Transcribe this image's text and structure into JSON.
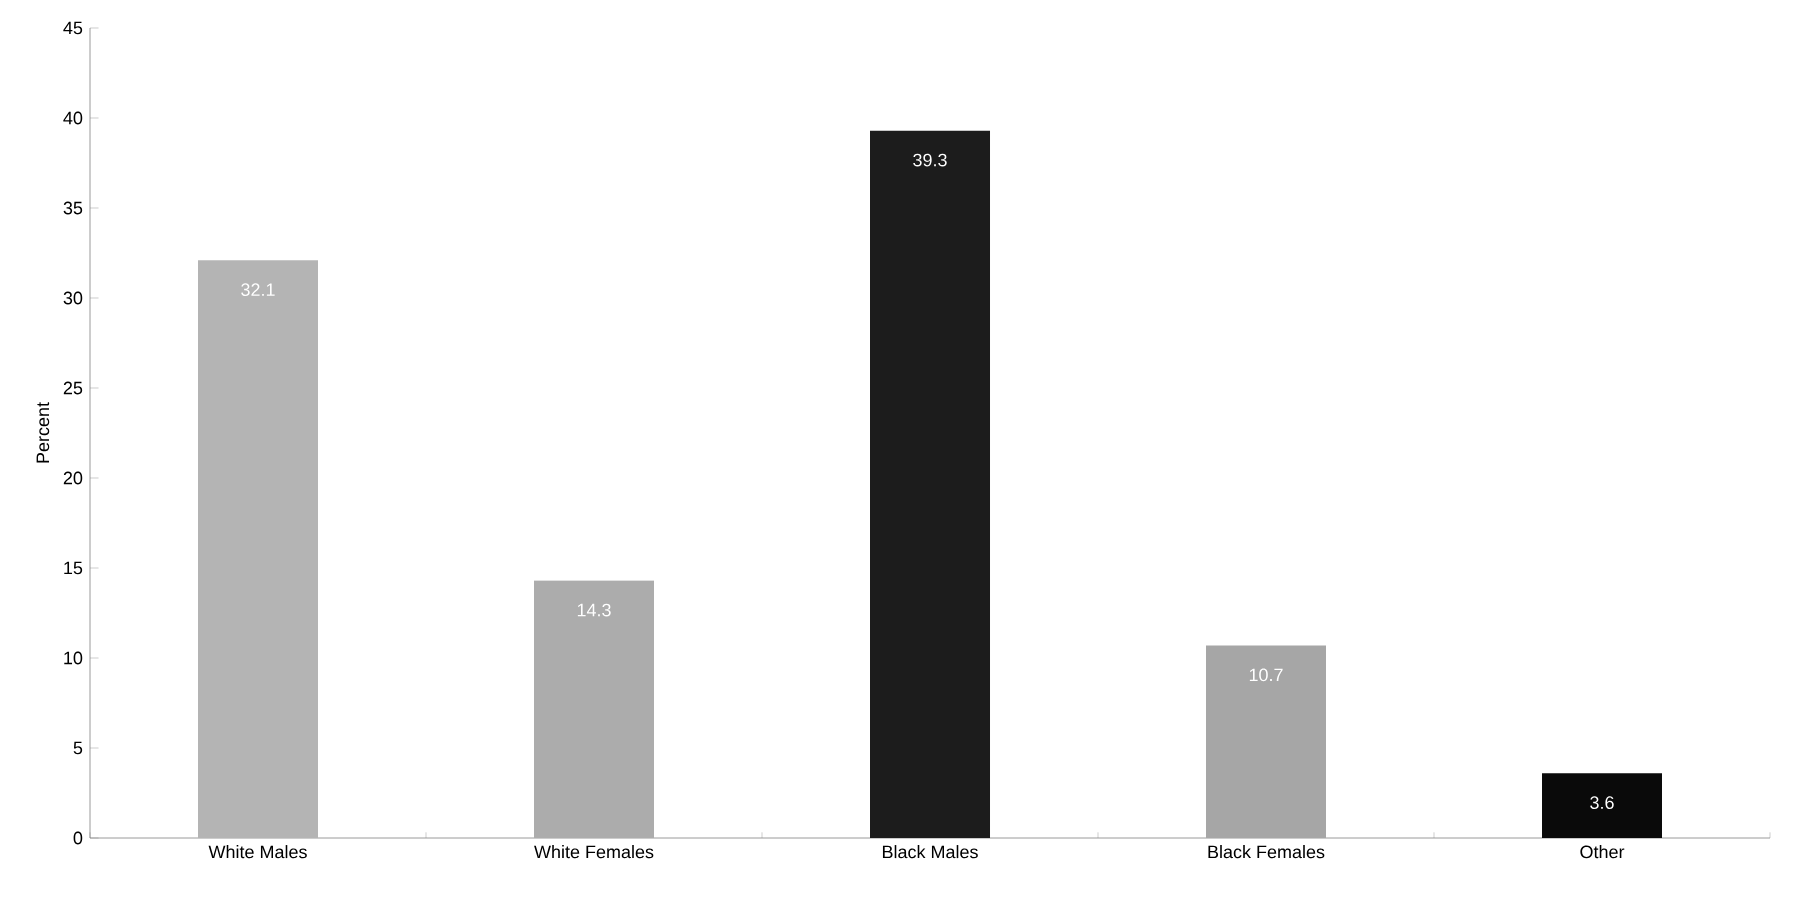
{
  "chart_data": {
    "type": "bar",
    "ylabel": "Percent",
    "categories": [
      "White Males",
      "White Females",
      "Black Males",
      "Black Females",
      "Other"
    ],
    "values": [
      32.1,
      14.3,
      39.3,
      10.7,
      3.6
    ],
    "colors": [
      "#b4b4b4",
      "#acacac",
      "#1c1c1c",
      "#a6a6a6",
      "#0a0a0a"
    ],
    "ylim": [
      0,
      45
    ],
    "yticks": [
      0,
      5,
      10,
      15,
      20,
      25,
      30,
      35,
      40,
      45
    ],
    "data_labels": true,
    "grid": false
  }
}
